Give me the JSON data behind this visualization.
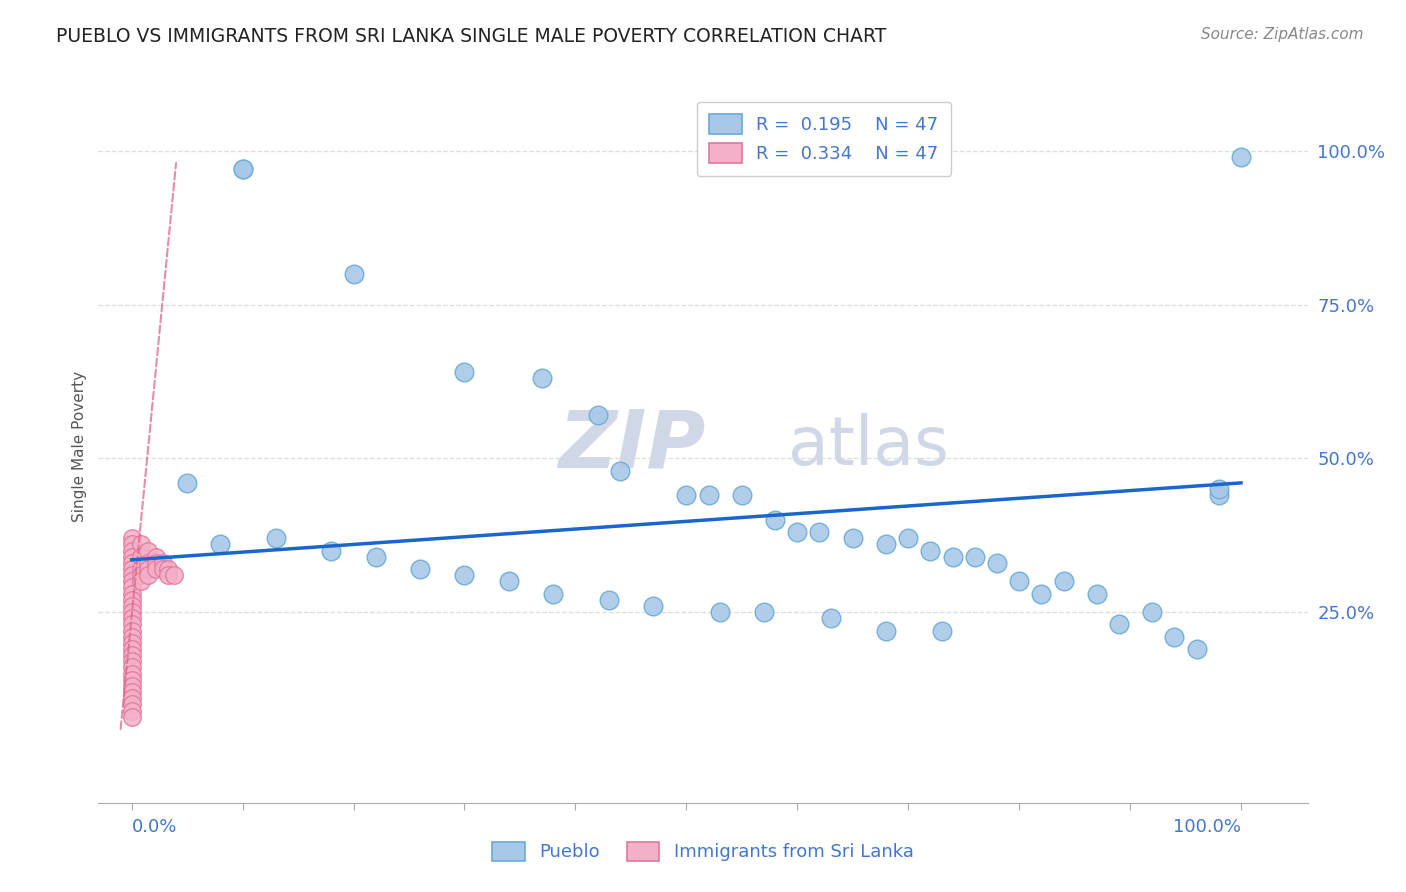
{
  "title": "PUEBLO VS IMMIGRANTS FROM SRI LANKA SINGLE MALE POVERTY CORRELATION CHART",
  "source": "Source: ZipAtlas.com",
  "ylabel": "Single Male Poverty",
  "watermark": "ZIPatlas",
  "pueblo_x": [
    0.1,
    0.1,
    0.2,
    0.3,
    0.37,
    0.42,
    0.44,
    0.5,
    0.52,
    0.55,
    0.58,
    0.6,
    0.62,
    0.65,
    0.68,
    0.7,
    0.72,
    0.74,
    0.76,
    0.78,
    0.8,
    0.82,
    0.84,
    0.87,
    0.89,
    0.92,
    0.94,
    0.96,
    0.98,
    1.0,
    0.05,
    0.08,
    0.13,
    0.18,
    0.22,
    0.26,
    0.3,
    0.34,
    0.38,
    0.43,
    0.47,
    0.53,
    0.57,
    0.63,
    0.68,
    0.73,
    0.98
  ],
  "pueblo_y": [
    0.97,
    0.97,
    0.8,
    0.64,
    0.63,
    0.57,
    0.48,
    0.44,
    0.44,
    0.44,
    0.4,
    0.38,
    0.38,
    0.37,
    0.36,
    0.37,
    0.35,
    0.34,
    0.34,
    0.33,
    0.3,
    0.28,
    0.3,
    0.28,
    0.23,
    0.25,
    0.21,
    0.19,
    0.44,
    0.99,
    0.46,
    0.36,
    0.37,
    0.35,
    0.34,
    0.32,
    0.31,
    0.3,
    0.28,
    0.27,
    0.26,
    0.25,
    0.25,
    0.24,
    0.22,
    0.22,
    0.45
  ],
  "sri_lanka_x": [
    0.0,
    0.0,
    0.0,
    0.0,
    0.0,
    0.0,
    0.0,
    0.0,
    0.0,
    0.0,
    0.0,
    0.0,
    0.0,
    0.0,
    0.0,
    0.0,
    0.0,
    0.0,
    0.0,
    0.0,
    0.0,
    0.0,
    0.0,
    0.0,
    0.0,
    0.0,
    0.0,
    0.0,
    0.0,
    0.0,
    0.008,
    0.008,
    0.008,
    0.008,
    0.008,
    0.015,
    0.015,
    0.015,
    0.015,
    0.022,
    0.022,
    0.022,
    0.028,
    0.028,
    0.033,
    0.033,
    0.038
  ],
  "sri_lanka_y": [
    0.37,
    0.36,
    0.35,
    0.34,
    0.33,
    0.32,
    0.31,
    0.3,
    0.29,
    0.28,
    0.27,
    0.26,
    0.25,
    0.24,
    0.23,
    0.22,
    0.21,
    0.2,
    0.19,
    0.18,
    0.17,
    0.16,
    0.15,
    0.14,
    0.13,
    0.12,
    0.11,
    0.1,
    0.09,
    0.08,
    0.36,
    0.34,
    0.32,
    0.31,
    0.3,
    0.35,
    0.33,
    0.32,
    0.31,
    0.34,
    0.33,
    0.32,
    0.33,
    0.32,
    0.32,
    0.31,
    0.31
  ],
  "pueblo_color": "#a8c8e8",
  "pueblo_edge": "#6aaad8",
  "sri_lanka_color": "#f4b0c8",
  "sri_lanka_edge": "#e07898",
  "trend_blue": "#1a66cc",
  "trend_pink": "#dd6688",
  "grid_color": "#dddddd",
  "title_color": "#222222",
  "tick_color": "#4477cc",
  "source_color": "#888888",
  "background": "#ffffff",
  "watermark_color": "#d0d8e8",
  "xlim": [
    0.0,
    1.0
  ],
  "ylim": [
    0.0,
    1.0
  ],
  "yticks": [
    0.0,
    0.25,
    0.5,
    0.75,
    1.0
  ],
  "ytick_labels": [
    "",
    "25.0%",
    "50.0%",
    "75.0%",
    "100.0%"
  ]
}
